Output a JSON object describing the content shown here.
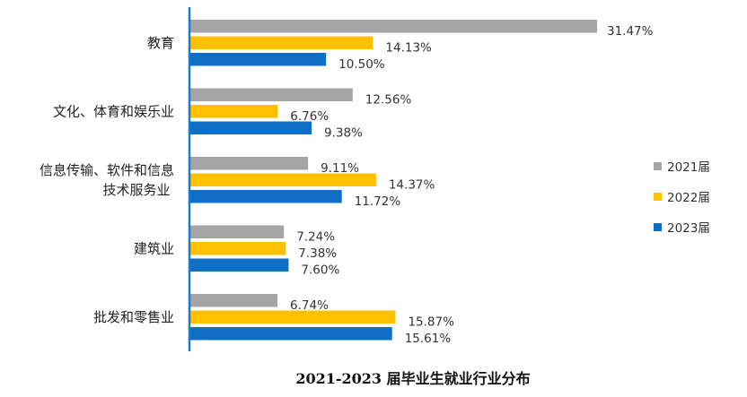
{
  "chart_data": {
    "type": "bar",
    "orientation": "horizontal",
    "title": "2021-2023 届毕业生就业行业分布",
    "categories": [
      [
        "教育"
      ],
      [
        "文化、体育和娱乐业"
      ],
      [
        "信息传输、软件和信息",
        "技术服务业"
      ],
      [
        "建筑业"
      ],
      [
        "批发和零售业"
      ]
    ],
    "series": [
      {
        "name": "2021届",
        "color": "#A5A5A5",
        "values": [
          31.47,
          12.56,
          9.11,
          7.24,
          6.74
        ]
      },
      {
        "name": "2022届",
        "color": "#FFC000",
        "values": [
          14.13,
          6.76,
          14.37,
          7.38,
          15.87
        ]
      },
      {
        "name": "2023届",
        "color": "#0F6FC6",
        "values": [
          10.5,
          9.38,
          11.72,
          7.6,
          15.61
        ]
      }
    ],
    "value_suffix": "%",
    "axis_color": "#1F77D0",
    "grid": false,
    "legend_position": "right"
  }
}
